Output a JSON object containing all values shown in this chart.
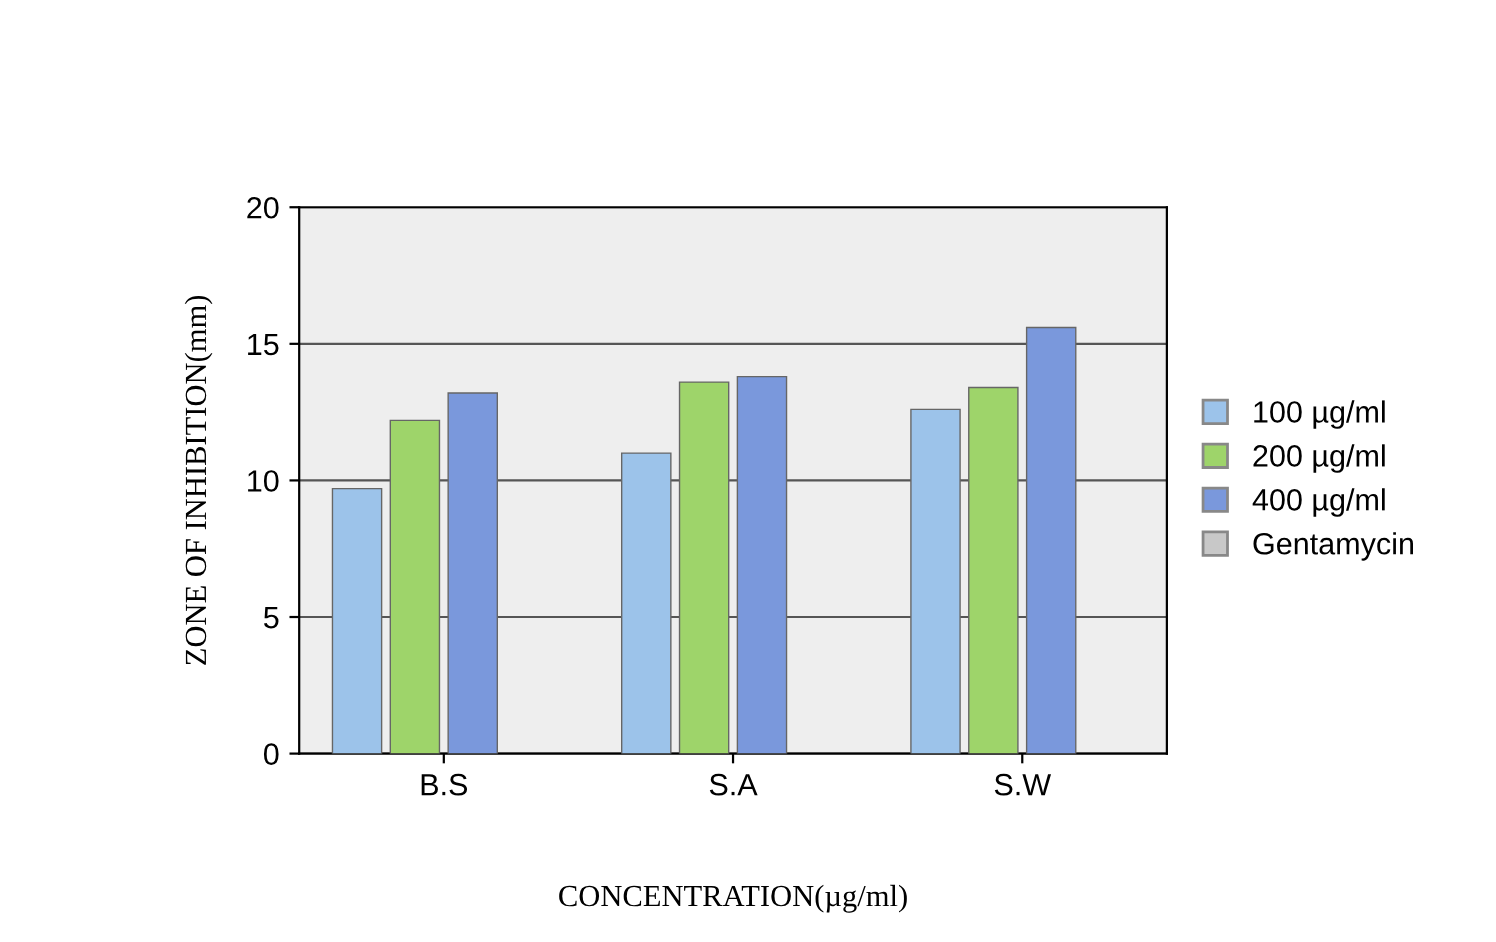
{
  "chart_data": {
    "type": "bar",
    "xlabel": "CONCENTRATION(µg/ml)",
    "ylabel": "ZONE OF INHIBITION(mm)",
    "categories": [
      "B.S",
      "S.A",
      "S.W"
    ],
    "series": [
      {
        "name": "100 µg/ml",
        "color": "#9cc3ea",
        "values": [
          9.7,
          11.0,
          12.6
        ]
      },
      {
        "name": "200 µg/ml",
        "color": "#9ed46a",
        "values": [
          12.2,
          13.6,
          13.4
        ]
      },
      {
        "name": "400 µg/ml",
        "color": "#7a98dc",
        "values": [
          13.2,
          13.8,
          15.6
        ]
      },
      {
        "name": "Gentamycin",
        "color": "#c8c8c8",
        "values": [
          null,
          null,
          null
        ]
      }
    ],
    "ylim": [
      0,
      20
    ],
    "yticks": [
      0,
      5,
      10,
      15,
      20
    ],
    "grid": "y",
    "legend": "right"
  }
}
